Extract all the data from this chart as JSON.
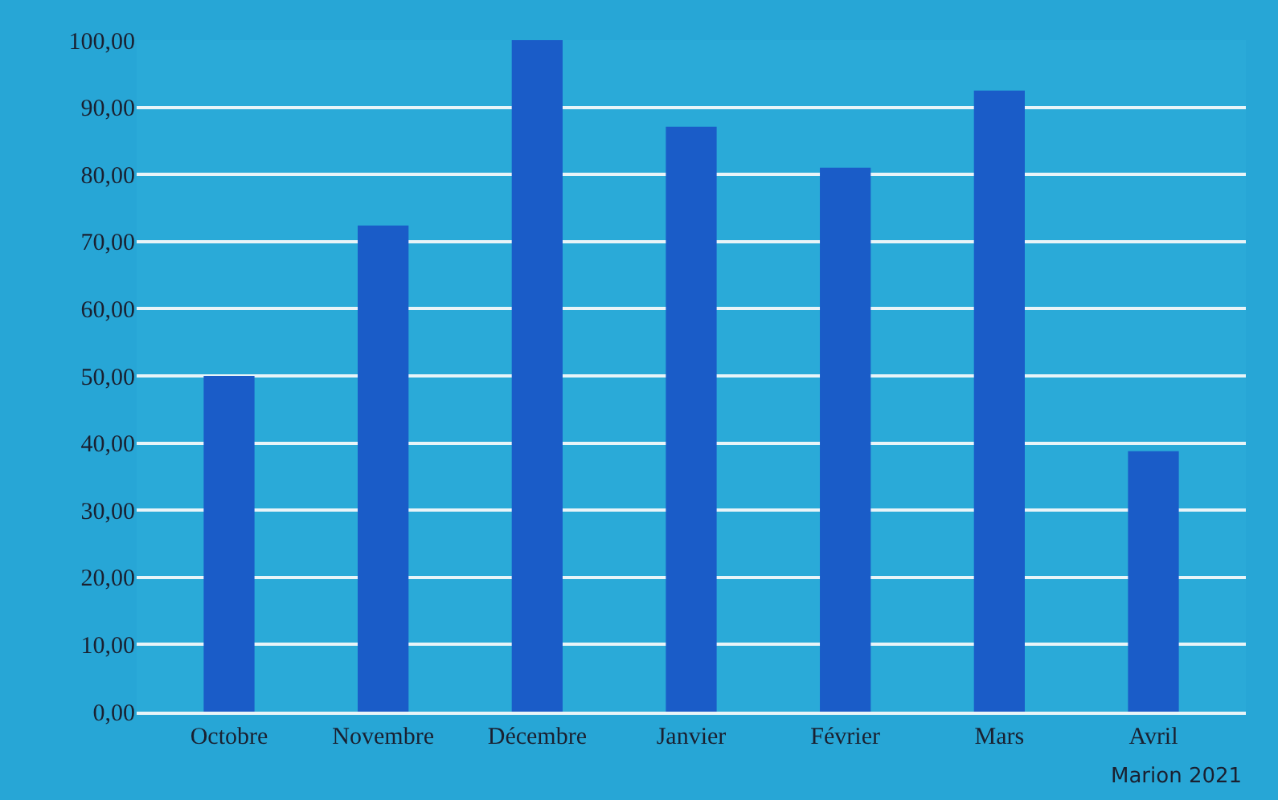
{
  "chart_data": {
    "type": "bar",
    "categories": [
      "Octobre",
      "Novembre",
      "Décembre",
      "Janvier",
      "Février",
      "Mars",
      "Avril"
    ],
    "values": [
      50,
      72.4,
      100,
      87.1,
      81,
      92.5,
      38.8
    ],
    "color": "#1a5cc8",
    "ylim": [
      0,
      100
    ],
    "yticks": [
      {
        "value": 0,
        "label": "0,00"
      },
      {
        "value": 10,
        "label": "10,00"
      },
      {
        "value": 20,
        "label": "20,00"
      },
      {
        "value": 30,
        "label": "30,00"
      },
      {
        "value": 40,
        "label": "40,00"
      },
      {
        "value": 50,
        "label": "50,00"
      },
      {
        "value": 60,
        "label": "60,00"
      },
      {
        "value": 70,
        "label": "70,00"
      },
      {
        "value": 80,
        "label": "80,00"
      },
      {
        "value": 90,
        "label": "90,00"
      },
      {
        "value": 100,
        "label": "100,00"
      }
    ],
    "grid": "y",
    "annotations": [
      "Marion 2021"
    ]
  }
}
